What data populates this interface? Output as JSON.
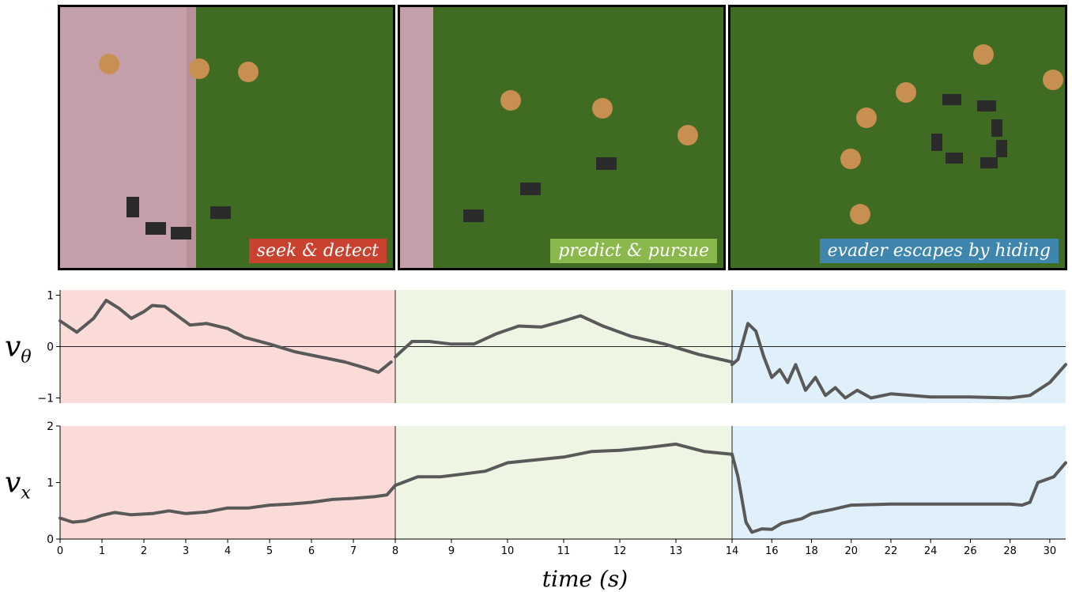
{
  "panels": [
    {
      "label": "seek & detect",
      "border": "#d23f2d",
      "tag_bg": "#c9422f"
    },
    {
      "label": "predict & pursue",
      "border": "#8fbf50",
      "tag_bg": "#8ab84d"
    },
    {
      "label": "evader escapes by hiding",
      "border": "#4a9cd0",
      "tag_bg": "#3e86ad"
    }
  ],
  "colors": {
    "phase1": "#fadbd8",
    "phase2": "#eef5e2",
    "phase3": "#dff0fa",
    "line": "#595959",
    "grass": "#3f6b22",
    "pavement": "#c49ea8"
  },
  "chart_data": {
    "type": "line",
    "xlabel": "time (s)",
    "phase_boundaries": [
      0,
      8,
      14,
      30.8
    ],
    "subplots": [
      {
        "ylabel": "v_θ",
        "ylim": [
          -1.1,
          1.1
        ],
        "yticks": [
          {
            "v": 1,
            "label": "1"
          },
          {
            "v": 0,
            "label": "0"
          },
          {
            "v": -1,
            "label": "−1"
          }
        ],
        "zero_line": true,
        "segments": [
          {
            "x": [
              0,
              0.4,
              0.8,
              1.1,
              1.4,
              1.7,
              2.0,
              2.2,
              2.5,
              2.8,
              3.1,
              3.5,
              4.0,
              4.4,
              5.0,
              5.6,
              6.2,
              6.8,
              7.3,
              7.6,
              7.9
            ],
            "y": [
              0.5,
              0.28,
              0.55,
              0.9,
              0.75,
              0.55,
              0.68,
              0.8,
              0.78,
              0.6,
              0.42,
              0.45,
              0.35,
              0.18,
              0.05,
              -0.1,
              -0.2,
              -0.3,
              -0.42,
              -0.5,
              -0.3
            ]
          },
          {
            "x": [
              8,
              8.3,
              8.6,
              9.0,
              9.4,
              9.8,
              10.2,
              10.6,
              11.0,
              11.3,
              11.7,
              12.2,
              12.8,
              13.4,
              14.0
            ],
            "y": [
              -0.2,
              0.1,
              0.1,
              0.05,
              0.05,
              0.25,
              0.4,
              0.38,
              0.5,
              0.6,
              0.4,
              0.2,
              0.05,
              -0.15,
              -0.3
            ]
          },
          {
            "x": [
              14,
              14.3,
              14.8,
              15.2,
              15.6,
              16.0,
              16.4,
              16.8,
              17.2,
              17.7,
              18.2,
              18.7,
              19.2,
              19.7,
              20.3,
              21.0,
              22.0,
              24.0,
              26.0,
              28.0,
              29.0,
              30.0,
              30.8
            ],
            "y": [
              -0.35,
              -0.25,
              0.45,
              0.3,
              -0.2,
              -0.6,
              -0.45,
              -0.7,
              -0.35,
              -0.85,
              -0.6,
              -0.95,
              -0.8,
              -1.0,
              -0.85,
              -1.0,
              -0.92,
              -0.98,
              -0.98,
              -1.0,
              -0.95,
              -0.7,
              -0.35
            ]
          }
        ]
      },
      {
        "ylabel": "v_x",
        "ylim": [
          0,
          2
        ],
        "yticks": [
          {
            "v": 2,
            "label": "2"
          },
          {
            "v": 1,
            "label": "1"
          },
          {
            "v": 0,
            "label": "0"
          }
        ],
        "zero_line": false,
        "segments": [
          {
            "x": [
              0,
              0.3,
              0.6,
              1.0,
              1.3,
              1.7,
              2.2,
              2.6,
              3.0,
              3.5,
              4.0,
              4.5,
              5.0,
              5.5,
              6.0,
              6.5,
              7.0,
              7.5,
              7.8,
              8.0
            ],
            "y": [
              0.37,
              0.3,
              0.32,
              0.42,
              0.47,
              0.43,
              0.45,
              0.5,
              0.45,
              0.48,
              0.55,
              0.55,
              0.6,
              0.62,
              0.65,
              0.7,
              0.72,
              0.75,
              0.78,
              0.95
            ]
          },
          {
            "x": [
              8,
              8.4,
              8.8,
              9.2,
              9.6,
              10.0,
              10.5,
              11.0,
              11.5,
              12.0,
              12.5,
              13.0,
              13.5,
              14.0
            ],
            "y": [
              0.95,
              1.1,
              1.1,
              1.15,
              1.2,
              1.35,
              1.4,
              1.45,
              1.55,
              1.57,
              1.62,
              1.68,
              1.55,
              1.5
            ]
          },
          {
            "x": [
              14,
              14.3,
              14.7,
              15.0,
              15.5,
              16.0,
              16.5,
              17.0,
              17.5,
              18.0,
              19.0,
              20.0,
              22.0,
              24.0,
              26.0,
              28.0,
              28.6,
              29.0,
              29.4,
              29.8,
              30.2,
              30.8
            ],
            "y": [
              1.5,
              1.1,
              0.3,
              0.12,
              0.18,
              0.17,
              0.28,
              0.32,
              0.36,
              0.45,
              0.52,
              0.6,
              0.62,
              0.62,
              0.62,
              0.62,
              0.6,
              0.65,
              1.0,
              1.05,
              1.1,
              1.35
            ]
          }
        ]
      }
    ],
    "xticks": [
      {
        "v": 0,
        "label": "0"
      },
      {
        "v": 1,
        "label": "1"
      },
      {
        "v": 2,
        "label": "2"
      },
      {
        "v": 3,
        "label": "3"
      },
      {
        "v": 4,
        "label": "4"
      },
      {
        "v": 5,
        "label": "5"
      },
      {
        "v": 6,
        "label": "6"
      },
      {
        "v": 7,
        "label": "7"
      },
      {
        "v": 8,
        "label": "8"
      },
      {
        "v": 9,
        "label": "9"
      },
      {
        "v": 10,
        "label": "10"
      },
      {
        "v": 11,
        "label": "11"
      },
      {
        "v": 12,
        "label": "12"
      },
      {
        "v": 13,
        "label": "13"
      },
      {
        "v": 14,
        "label": "14"
      },
      {
        "v": 16,
        "label": "16"
      },
      {
        "v": 18,
        "label": "18"
      },
      {
        "v": 20,
        "label": "20"
      },
      {
        "v": 22,
        "label": "22"
      },
      {
        "v": 24,
        "label": "24"
      },
      {
        "v": 26,
        "label": "26"
      },
      {
        "v": 28,
        "label": "28"
      },
      {
        "v": 30,
        "label": "30"
      }
    ]
  }
}
